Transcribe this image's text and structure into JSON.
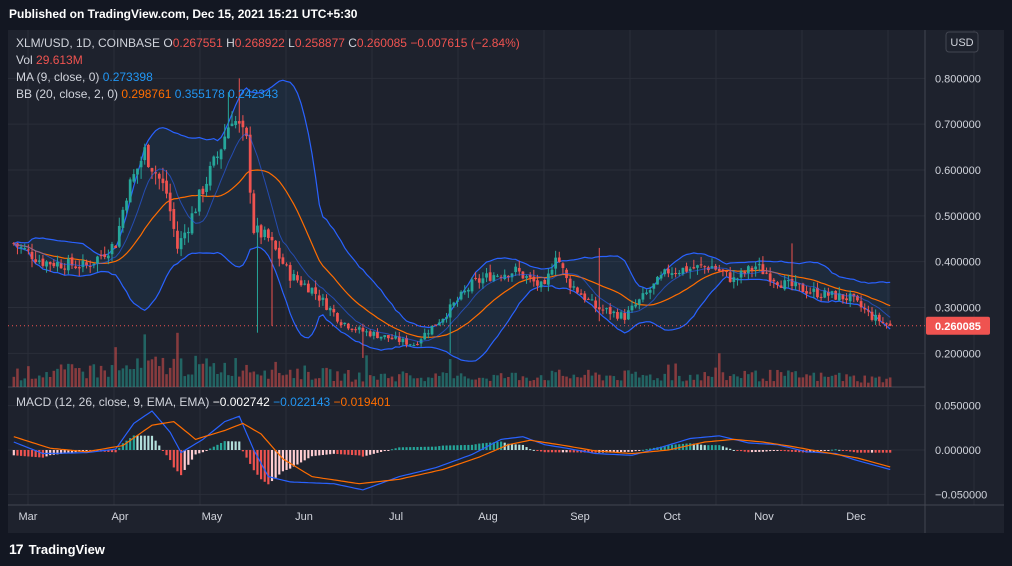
{
  "header": {
    "published": "Published on TradingView.com, Dec 15, 2021 15:21 UTC+5:30"
  },
  "legend": {
    "symbol": "XLM/USD, 1D, COINBASE",
    "o_label": "O",
    "o_value": "0.267551",
    "h_label": "H",
    "h_value": "0.268922",
    "l_label": "L",
    "l_value": "0.258877",
    "c_label": "C",
    "c_value": "0.260085",
    "change": "−0.007615 (−2.84%)",
    "vol_label": "Vol",
    "vol_value": "29.613M",
    "ma_label": "MA (9, close, 0)",
    "ma_value": "0.273398",
    "bb_label": "BB (20, close, 2, 0)",
    "bb_basis": "0.298761",
    "bb_upper": "0.355178",
    "bb_lower": "0.242343"
  },
  "macd_legend": {
    "label": "MACD (12, 26, close, 9, EMA, EMA)",
    "hist": "−0.002742",
    "macd": "−0.022143",
    "signal": "−0.019401"
  },
  "currency_button": "USD",
  "price_tag": "0.260085",
  "footer": {
    "brand": "TradingView",
    "logo": "17"
  },
  "colors": {
    "up": "#26a69a",
    "down": "#ef5350",
    "bb": "#2962ff",
    "basis": "#ff6d00",
    "ma": "#2962ff"
  },
  "chart_data": [
    {
      "type": "candlestick",
      "title": "XLM/USD, 1D, COINBASE",
      "x_tick_labels": [
        "Mar",
        "Apr",
        "May",
        "Jun",
        "Jul",
        "Aug",
        "Sep",
        "Oct",
        "Nov",
        "Dec"
      ],
      "y_tick_labels": [
        "0.800000",
        "0.700000",
        "0.600000",
        "0.500000",
        "0.400000",
        "0.300000",
        "0.200000"
      ],
      "y_ticks": [
        0.8,
        0.7,
        0.6,
        0.5,
        0.4,
        0.3,
        0.2
      ],
      "ylim": [
        0.12,
        0.84
      ],
      "last_close": 0.260085,
      "close_keyframes": [
        [
          0,
          0.44
        ],
        [
          8,
          0.4
        ],
        [
          20,
          0.39
        ],
        [
          28,
          0.44
        ],
        [
          31,
          0.55
        ],
        [
          36,
          0.64
        ],
        [
          42,
          0.55
        ],
        [
          45,
          0.43
        ],
        [
          48,
          0.48
        ],
        [
          52,
          0.56
        ],
        [
          56,
          0.63
        ],
        [
          60,
          0.72
        ],
        [
          64,
          0.66
        ],
        [
          66,
          0.47
        ],
        [
          70,
          0.45
        ],
        [
          76,
          0.37
        ],
        [
          82,
          0.34
        ],
        [
          90,
          0.27
        ],
        [
          95,
          0.25
        ],
        [
          105,
          0.23
        ],
        [
          110,
          0.22
        ],
        [
          118,
          0.28
        ],
        [
          126,
          0.35
        ],
        [
          131,
          0.37
        ],
        [
          138,
          0.38
        ],
        [
          146,
          0.34
        ],
        [
          149,
          0.42
        ],
        [
          152,
          0.36
        ],
        [
          160,
          0.3
        ],
        [
          168,
          0.28
        ],
        [
          174,
          0.33
        ],
        [
          180,
          0.38
        ],
        [
          192,
          0.39
        ],
        [
          198,
          0.36
        ],
        [
          204,
          0.39
        ],
        [
          212,
          0.35
        ],
        [
          222,
          0.33
        ],
        [
          230,
          0.32
        ],
        [
          236,
          0.28
        ],
        [
          241,
          0.26
        ]
      ],
      "series": [
        {
          "name": "MA (9, close, 0)",
          "last": 0.273398
        },
        {
          "name": "BB (20, close, 2, 0)",
          "basis": 0.298761,
          "upper": 0.355178,
          "lower": 0.242343
        }
      ]
    },
    {
      "type": "bar",
      "title": "Vol",
      "last": "29.613M",
      "level_keyframes": [
        [
          0,
          0.35
        ],
        [
          30,
          0.45
        ],
        [
          42,
          0.6
        ],
        [
          55,
          0.5
        ],
        [
          62,
          0.55
        ],
        [
          70,
          0.45
        ],
        [
          90,
          0.3
        ],
        [
          120,
          0.25
        ],
        [
          150,
          0.3
        ],
        [
          180,
          0.28
        ],
        [
          210,
          0.3
        ],
        [
          241,
          0.2
        ]
      ]
    },
    {
      "type": "line",
      "title": "MACD (12, 26, close, 9, EMA, EMA)",
      "y_tick_labels": [
        "0.050000",
        "0.000000",
        "−0.050000"
      ],
      "y_ticks": [
        0.05,
        0.0,
        -0.05
      ],
      "ylim": [
        -0.062,
        0.062
      ],
      "macd_keyframes": [
        [
          0,
          0.009
        ],
        [
          8,
          -0.004
        ],
        [
          20,
          -0.003
        ],
        [
          28,
          0.001
        ],
        [
          33,
          0.03
        ],
        [
          38,
          0.044
        ],
        [
          43,
          0.02
        ],
        [
          46,
          -0.003
        ],
        [
          52,
          0.012
        ],
        [
          58,
          0.032
        ],
        [
          62,
          0.038
        ],
        [
          66,
          0.0
        ],
        [
          70,
          -0.03
        ],
        [
          76,
          -0.036
        ],
        [
          88,
          -0.038
        ],
        [
          96,
          -0.045
        ],
        [
          106,
          -0.03
        ],
        [
          116,
          -0.02
        ],
        [
          126,
          -0.005
        ],
        [
          134,
          0.012
        ],
        [
          140,
          0.015
        ],
        [
          146,
          0.006
        ],
        [
          152,
          0.002
        ],
        [
          160,
          -0.004
        ],
        [
          170,
          -0.006
        ],
        [
          178,
          0.003
        ],
        [
          186,
          0.013
        ],
        [
          194,
          0.016
        ],
        [
          202,
          0.008
        ],
        [
          210,
          0.006
        ],
        [
          218,
          -0.002
        ],
        [
          226,
          -0.004
        ],
        [
          232,
          -0.012
        ],
        [
          241,
          -0.022
        ]
      ],
      "signal_keyframes": [
        [
          0,
          0.015
        ],
        [
          10,
          0.002
        ],
        [
          20,
          -0.002
        ],
        [
          30,
          0.005
        ],
        [
          38,
          0.028
        ],
        [
          44,
          0.032
        ],
        [
          50,
          0.012
        ],
        [
          58,
          0.022
        ],
        [
          63,
          0.03
        ],
        [
          68,
          0.018
        ],
        [
          74,
          -0.01
        ],
        [
          82,
          -0.03
        ],
        [
          95,
          -0.038
        ],
        [
          106,
          -0.033
        ],
        [
          118,
          -0.022
        ],
        [
          128,
          -0.008
        ],
        [
          136,
          0.006
        ],
        [
          142,
          0.011
        ],
        [
          150,
          0.006
        ],
        [
          160,
          -0.001
        ],
        [
          170,
          -0.004
        ],
        [
          180,
          0.0
        ],
        [
          190,
          0.009
        ],
        [
          198,
          0.012
        ],
        [
          206,
          0.009
        ],
        [
          214,
          0.004
        ],
        [
          222,
          -0.002
        ],
        [
          232,
          -0.009
        ],
        [
          241,
          -0.019
        ]
      ],
      "last_hist": -0.002742
    }
  ]
}
